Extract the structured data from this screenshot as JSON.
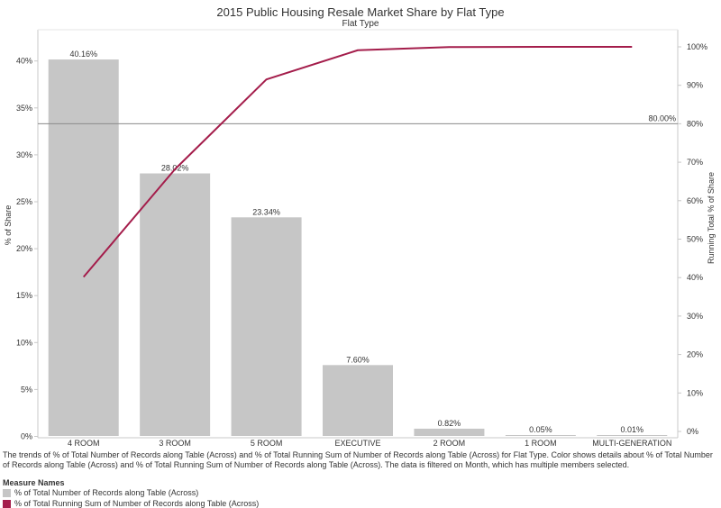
{
  "chart_data": {
    "type": "bar",
    "title": "2015 Public Housing Resale Market Share by Flat Type",
    "subtitle": "Flat Type",
    "categories": [
      "4 ROOM",
      "3 ROOM",
      "5 ROOM",
      "EXECUTIVE",
      "2 ROOM",
      "1 ROOM",
      "MULTI-GENERATION"
    ],
    "series": [
      {
        "name": "% of Total Number of Records along Table (Across)",
        "type": "bar",
        "axis": "left",
        "values": [
          40.16,
          28.02,
          23.34,
          7.6,
          0.82,
          0.05,
          0.01
        ],
        "labels": [
          "40.16%",
          "28.02%",
          "23.34%",
          "7.60%",
          "0.82%",
          "0.05%",
          "0.01%"
        ],
        "color": "#c6c6c6"
      },
      {
        "name": "% of Total Running Sum of Number of Records along Table (Across)",
        "type": "line",
        "axis": "right",
        "values": [
          40.16,
          68.18,
          91.52,
          99.12,
          99.94,
          99.99,
          100.0
        ],
        "color": "#a41d4b"
      }
    ],
    "ylabel": "% of Share",
    "ylabel_right": "Running Total % of Share",
    "ylim": [
      0,
      42
    ],
    "ylim_right": [
      0,
      105
    ],
    "yticks": [
      0,
      5,
      10,
      15,
      20,
      25,
      30,
      35,
      40
    ],
    "ytick_labels": [
      "0%",
      "5%",
      "10%",
      "15%",
      "20%",
      "25%",
      "30%",
      "35%",
      "40%"
    ],
    "yticks_right": [
      0,
      10,
      20,
      30,
      40,
      50,
      60,
      70,
      80,
      90,
      100
    ],
    "ytick_labels_right": [
      "0%",
      "10%",
      "20%",
      "30%",
      "40%",
      "50%",
      "60%",
      "70%",
      "80%",
      "90%",
      "100%"
    ],
    "reference_line": {
      "axis": "right",
      "value": 80,
      "label": "80.00%",
      "color": "#8a8a8a"
    },
    "grid": false
  },
  "caption": "The trends of % of Total Number of Records along Table (Across) and % of Total Running Sum of Number of Records along Table (Across) for Flat Type.  Color shows details about % of Total Number of Records along Table (Across) and % of Total Running Sum of Number of Records along Table (Across). The data is filtered on Month, which has multiple members selected.",
  "legend": {
    "title": "Measure Names",
    "items": [
      {
        "label": "% of Total Number of Records along Table (Across)",
        "color": "#c6c6c6"
      },
      {
        "label": "% of Total Running Sum of Number of Records along Table (Across)",
        "color": "#a41d4b"
      }
    ]
  }
}
